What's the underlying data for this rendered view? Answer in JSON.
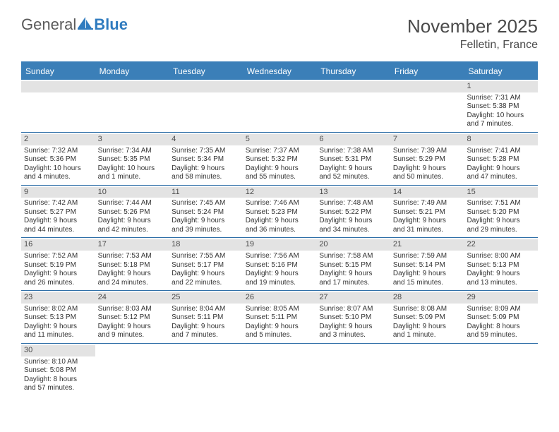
{
  "logo": {
    "text1": "General",
    "text2": "Blue"
  },
  "title": "November 2025",
  "location": "Felletin, France",
  "colors": {
    "header_bg": "#3b7fb8",
    "header_text": "#ffffff",
    "strip_bg": "#e3e3e3",
    "border": "#2f6fa8",
    "logo_gray": "#5a5a5a",
    "logo_blue": "#2f7bbf"
  },
  "day_headers": [
    "Sunday",
    "Monday",
    "Tuesday",
    "Wednesday",
    "Thursday",
    "Friday",
    "Saturday"
  ],
  "weeks": [
    [
      {
        "day": "",
        "lines": [
          "",
          "",
          "",
          ""
        ]
      },
      {
        "day": "",
        "lines": [
          "",
          "",
          "",
          ""
        ]
      },
      {
        "day": "",
        "lines": [
          "",
          "",
          "",
          ""
        ]
      },
      {
        "day": "",
        "lines": [
          "",
          "",
          "",
          ""
        ]
      },
      {
        "day": "",
        "lines": [
          "",
          "",
          "",
          ""
        ]
      },
      {
        "day": "",
        "lines": [
          "",
          "",
          "",
          ""
        ]
      },
      {
        "day": "1",
        "lines": [
          "Sunrise: 7:31 AM",
          "Sunset: 5:38 PM",
          "Daylight: 10 hours",
          "and 7 minutes."
        ]
      }
    ],
    [
      {
        "day": "2",
        "lines": [
          "Sunrise: 7:32 AM",
          "Sunset: 5:36 PM",
          "Daylight: 10 hours",
          "and 4 minutes."
        ]
      },
      {
        "day": "3",
        "lines": [
          "Sunrise: 7:34 AM",
          "Sunset: 5:35 PM",
          "Daylight: 10 hours",
          "and 1 minute."
        ]
      },
      {
        "day": "4",
        "lines": [
          "Sunrise: 7:35 AM",
          "Sunset: 5:34 PM",
          "Daylight: 9 hours",
          "and 58 minutes."
        ]
      },
      {
        "day": "5",
        "lines": [
          "Sunrise: 7:37 AM",
          "Sunset: 5:32 PM",
          "Daylight: 9 hours",
          "and 55 minutes."
        ]
      },
      {
        "day": "6",
        "lines": [
          "Sunrise: 7:38 AM",
          "Sunset: 5:31 PM",
          "Daylight: 9 hours",
          "and 52 minutes."
        ]
      },
      {
        "day": "7",
        "lines": [
          "Sunrise: 7:39 AM",
          "Sunset: 5:29 PM",
          "Daylight: 9 hours",
          "and 50 minutes."
        ]
      },
      {
        "day": "8",
        "lines": [
          "Sunrise: 7:41 AM",
          "Sunset: 5:28 PM",
          "Daylight: 9 hours",
          "and 47 minutes."
        ]
      }
    ],
    [
      {
        "day": "9",
        "lines": [
          "Sunrise: 7:42 AM",
          "Sunset: 5:27 PM",
          "Daylight: 9 hours",
          "and 44 minutes."
        ]
      },
      {
        "day": "10",
        "lines": [
          "Sunrise: 7:44 AM",
          "Sunset: 5:26 PM",
          "Daylight: 9 hours",
          "and 42 minutes."
        ]
      },
      {
        "day": "11",
        "lines": [
          "Sunrise: 7:45 AM",
          "Sunset: 5:24 PM",
          "Daylight: 9 hours",
          "and 39 minutes."
        ]
      },
      {
        "day": "12",
        "lines": [
          "Sunrise: 7:46 AM",
          "Sunset: 5:23 PM",
          "Daylight: 9 hours",
          "and 36 minutes."
        ]
      },
      {
        "day": "13",
        "lines": [
          "Sunrise: 7:48 AM",
          "Sunset: 5:22 PM",
          "Daylight: 9 hours",
          "and 34 minutes."
        ]
      },
      {
        "day": "14",
        "lines": [
          "Sunrise: 7:49 AM",
          "Sunset: 5:21 PM",
          "Daylight: 9 hours",
          "and 31 minutes."
        ]
      },
      {
        "day": "15",
        "lines": [
          "Sunrise: 7:51 AM",
          "Sunset: 5:20 PM",
          "Daylight: 9 hours",
          "and 29 minutes."
        ]
      }
    ],
    [
      {
        "day": "16",
        "lines": [
          "Sunrise: 7:52 AM",
          "Sunset: 5:19 PM",
          "Daylight: 9 hours",
          "and 26 minutes."
        ]
      },
      {
        "day": "17",
        "lines": [
          "Sunrise: 7:53 AM",
          "Sunset: 5:18 PM",
          "Daylight: 9 hours",
          "and 24 minutes."
        ]
      },
      {
        "day": "18",
        "lines": [
          "Sunrise: 7:55 AM",
          "Sunset: 5:17 PM",
          "Daylight: 9 hours",
          "and 22 minutes."
        ]
      },
      {
        "day": "19",
        "lines": [
          "Sunrise: 7:56 AM",
          "Sunset: 5:16 PM",
          "Daylight: 9 hours",
          "and 19 minutes."
        ]
      },
      {
        "day": "20",
        "lines": [
          "Sunrise: 7:58 AM",
          "Sunset: 5:15 PM",
          "Daylight: 9 hours",
          "and 17 minutes."
        ]
      },
      {
        "day": "21",
        "lines": [
          "Sunrise: 7:59 AM",
          "Sunset: 5:14 PM",
          "Daylight: 9 hours",
          "and 15 minutes."
        ]
      },
      {
        "day": "22",
        "lines": [
          "Sunrise: 8:00 AM",
          "Sunset: 5:13 PM",
          "Daylight: 9 hours",
          "and 13 minutes."
        ]
      }
    ],
    [
      {
        "day": "23",
        "lines": [
          "Sunrise: 8:02 AM",
          "Sunset: 5:13 PM",
          "Daylight: 9 hours",
          "and 11 minutes."
        ]
      },
      {
        "day": "24",
        "lines": [
          "Sunrise: 8:03 AM",
          "Sunset: 5:12 PM",
          "Daylight: 9 hours",
          "and 9 minutes."
        ]
      },
      {
        "day": "25",
        "lines": [
          "Sunrise: 8:04 AM",
          "Sunset: 5:11 PM",
          "Daylight: 9 hours",
          "and 7 minutes."
        ]
      },
      {
        "day": "26",
        "lines": [
          "Sunrise: 8:05 AM",
          "Sunset: 5:11 PM",
          "Daylight: 9 hours",
          "and 5 minutes."
        ]
      },
      {
        "day": "27",
        "lines": [
          "Sunrise: 8:07 AM",
          "Sunset: 5:10 PM",
          "Daylight: 9 hours",
          "and 3 minutes."
        ]
      },
      {
        "day": "28",
        "lines": [
          "Sunrise: 8:08 AM",
          "Sunset: 5:09 PM",
          "Daylight: 9 hours",
          "and 1 minute."
        ]
      },
      {
        "day": "29",
        "lines": [
          "Sunrise: 8:09 AM",
          "Sunset: 5:09 PM",
          "Daylight: 8 hours",
          "and 59 minutes."
        ]
      }
    ],
    [
      {
        "day": "30",
        "lines": [
          "Sunrise: 8:10 AM",
          "Sunset: 5:08 PM",
          "Daylight: 8 hours",
          "and 57 minutes."
        ]
      },
      {
        "day": "",
        "lines": [
          "",
          "",
          "",
          ""
        ]
      },
      {
        "day": "",
        "lines": [
          "",
          "",
          "",
          ""
        ]
      },
      {
        "day": "",
        "lines": [
          "",
          "",
          "",
          ""
        ]
      },
      {
        "day": "",
        "lines": [
          "",
          "",
          "",
          ""
        ]
      },
      {
        "day": "",
        "lines": [
          "",
          "",
          "",
          ""
        ]
      },
      {
        "day": "",
        "lines": [
          "",
          "",
          "",
          ""
        ]
      }
    ]
  ]
}
